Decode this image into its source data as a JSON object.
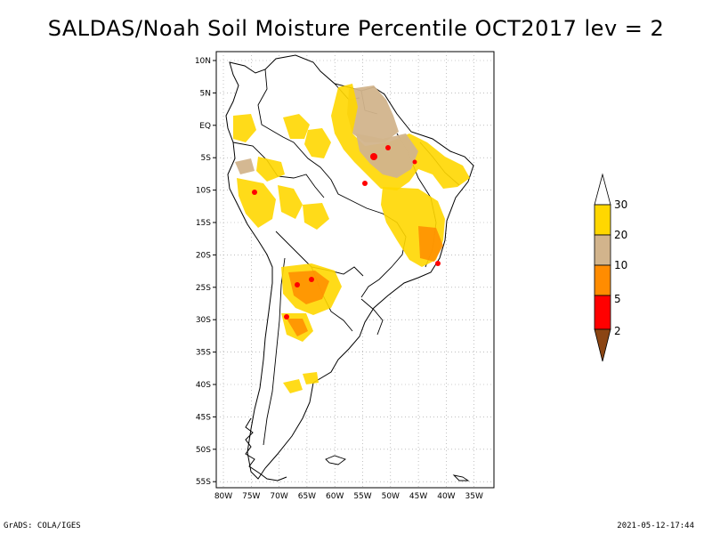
{
  "title": "SALDAS/Noah Soil Moisture Percentile OCT2017 lev = 2",
  "footer": {
    "left": "GrADS: COLA/IGES",
    "right": "2021-05-12-17:44"
  },
  "axes": {
    "lat_labels": [
      "10N",
      "5N",
      "EQ",
      "5S",
      "10S",
      "15S",
      "20S",
      "25S",
      "30S",
      "35S",
      "40S",
      "45S",
      "50S",
      "55S"
    ],
    "lon_labels": [
      "80W",
      "75W",
      "70W",
      "65W",
      "60W",
      "55W",
      "50W",
      "45W",
      "40W",
      "35W"
    ]
  },
  "legend": {
    "labels": [
      "2",
      "5",
      "10",
      "20",
      "30"
    ],
    "colors": [
      "#8B4513",
      "#FF0000",
      "#FF8C00",
      "#D2B48C",
      "#FFD700",
      "#FFFFFF"
    ]
  },
  "map_colors": {
    "drought_light": "#FFD700",
    "drought_tan": "#D2B48C",
    "drought_orange": "#FF8C00",
    "drought_red": "#FF0000"
  }
}
